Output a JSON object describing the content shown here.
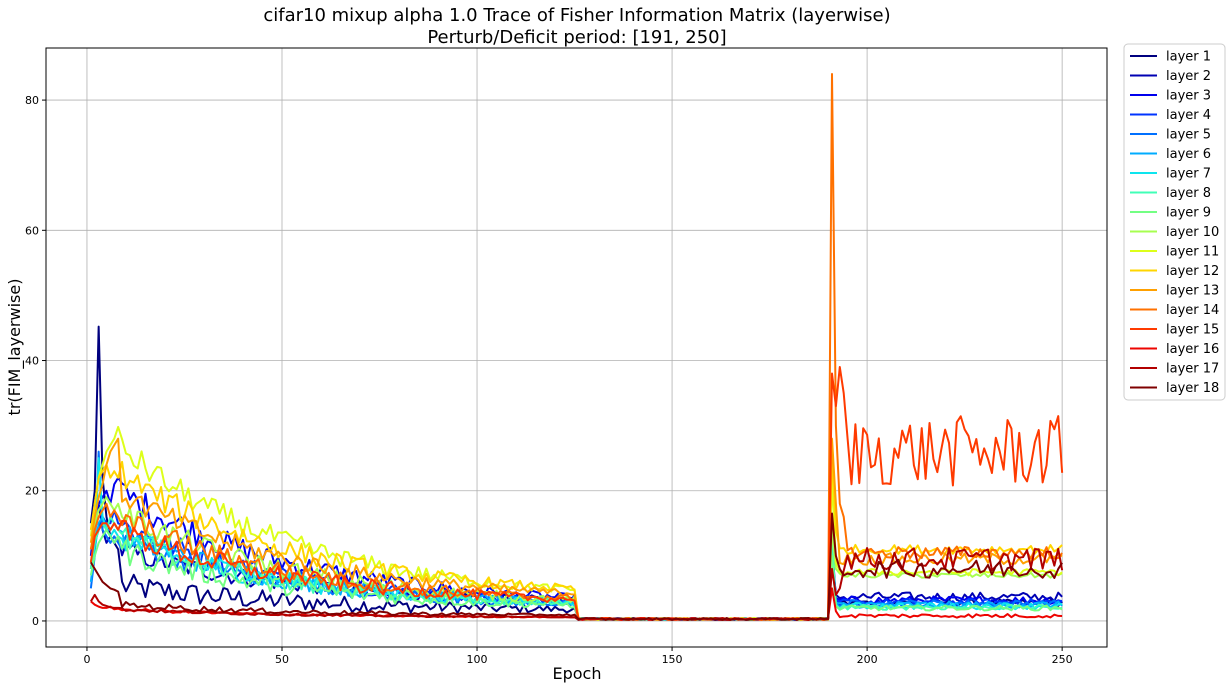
{
  "chart_data": {
    "type": "line",
    "title": "cifar10 mixup alpha 1.0 Trace of Fisher Information Matrix (layerwise)",
    "subtitle": "Perturb/Deficit period: [191, 250]",
    "xlabel": "Epoch",
    "ylabel": "tr(FIM_layerwise)",
    "xlim": [
      -10.5,
      261.5
    ],
    "ylim": [
      -4,
      88
    ],
    "xticks": [
      0,
      50,
      100,
      150,
      200,
      250
    ],
    "yticks": [
      0,
      20,
      40,
      60,
      80
    ],
    "grid": true,
    "legend_position": "outside-right-top",
    "series": [
      {
        "name": "layer 1",
        "color": "#00007f",
        "init": [
          [
            1,
            15
          ],
          [
            2,
            20
          ],
          [
            3,
            45.2
          ],
          [
            4,
            22
          ],
          [
            5,
            16
          ],
          [
            6,
            13
          ],
          [
            7,
            12
          ],
          [
            8,
            11
          ]
        ],
        "mid": 5.5,
        "k": 4,
        "decayEnd": 1.5,
        "post": [
          [
            191,
            11
          ],
          [
            192,
            3.2
          ]
        ],
        "plateau": 2.8,
        "noise": 0.5
      },
      {
        "name": "layer 2",
        "color": "#0000b3",
        "init": [
          [
            1,
            14
          ],
          [
            2,
            16
          ],
          [
            3,
            18
          ],
          [
            4,
            14
          ],
          [
            5,
            12
          ],
          [
            6,
            13
          ],
          [
            7,
            12
          ],
          [
            8,
            13
          ]
        ],
        "mid": 11,
        "k": 3.5,
        "decayEnd": 2.6,
        "post": [
          [
            191,
            10
          ],
          [
            192,
            4.0
          ]
        ],
        "plateau": 3.7,
        "noise": 0.7
      },
      {
        "name": "layer 3",
        "color": "#0000ed",
        "init": [
          [
            1,
            10
          ],
          [
            2,
            16
          ],
          [
            3,
            18
          ],
          [
            4,
            19
          ],
          [
            5,
            20
          ],
          [
            6,
            18
          ],
          [
            7,
            21
          ],
          [
            8,
            22
          ]
        ],
        "mid": 20,
        "k": 5,
        "decayEnd": 2.2,
        "post": [
          [
            191,
            12
          ],
          [
            192,
            3.5
          ]
        ],
        "plateau": 3.2,
        "noise": 0.6
      },
      {
        "name": "layer 4",
        "color": "#0034ff",
        "init": [
          [
            1,
            8
          ],
          [
            2,
            12
          ],
          [
            3,
            14
          ],
          [
            4,
            16
          ],
          [
            5,
            15
          ],
          [
            6,
            15
          ],
          [
            7,
            17
          ],
          [
            8,
            15
          ]
        ],
        "mid": 15,
        "k": 4,
        "decayEnd": 2.0,
        "post": [
          [
            191,
            10
          ],
          [
            192,
            3.2
          ]
        ],
        "plateau": 2.9,
        "noise": 0.5
      },
      {
        "name": "layer 5",
        "color": "#0070ff",
        "init": [
          [
            1,
            5
          ],
          [
            2,
            10
          ],
          [
            3,
            26
          ],
          [
            4,
            14
          ],
          [
            5,
            13
          ],
          [
            6,
            12
          ],
          [
            7,
            13
          ],
          [
            8,
            12
          ]
        ],
        "mid": 13,
        "k": 4,
        "decayEnd": 1.8,
        "post": [
          [
            191,
            11
          ],
          [
            192,
            3.0
          ]
        ],
        "plateau": 2.7,
        "noise": 0.5
      },
      {
        "name": "layer 6",
        "color": "#00acff",
        "init": [
          [
            1,
            6
          ],
          [
            2,
            11
          ],
          [
            3,
            15
          ],
          [
            4,
            16
          ],
          [
            5,
            14
          ],
          [
            6,
            14
          ],
          [
            7,
            15
          ],
          [
            8,
            14
          ]
        ],
        "mid": 13.5,
        "k": 4,
        "decayEnd": 1.9,
        "post": [
          [
            191,
            10
          ],
          [
            192,
            2.8
          ]
        ],
        "plateau": 2.5,
        "noise": 0.5
      },
      {
        "name": "layer 7",
        "color": "#0de5ee",
        "init": [
          [
            1,
            9
          ],
          [
            2,
            12
          ],
          [
            3,
            25
          ],
          [
            4,
            16
          ],
          [
            5,
            14
          ],
          [
            6,
            13
          ],
          [
            7,
            14
          ],
          [
            8,
            13
          ]
        ],
        "mid": 13,
        "k": 4,
        "decayEnd": 2.0,
        "post": [
          [
            191,
            12
          ],
          [
            192,
            2.6
          ]
        ],
        "plateau": 2.3,
        "noise": 0.5
      },
      {
        "name": "layer 8",
        "color": "#40ffb7",
        "init": [
          [
            1,
            8
          ],
          [
            2,
            12
          ],
          [
            3,
            14
          ],
          [
            4,
            15
          ],
          [
            5,
            14
          ],
          [
            6,
            16
          ],
          [
            7,
            15
          ],
          [
            8,
            14
          ]
        ],
        "mid": 13,
        "k": 4,
        "decayEnd": 2.0,
        "post": [
          [
            191,
            12
          ],
          [
            192,
            2.4
          ]
        ],
        "plateau": 2.1,
        "noise": 0.4
      },
      {
        "name": "layer 9",
        "color": "#73ff83",
        "init": [
          [
            1,
            7
          ],
          [
            2,
            10
          ],
          [
            3,
            12
          ],
          [
            4,
            13
          ],
          [
            5,
            14
          ],
          [
            6,
            13
          ],
          [
            7,
            12
          ],
          [
            8,
            13
          ]
        ],
        "mid": 11,
        "k": 4,
        "decayEnd": 1.8,
        "post": [
          [
            191,
            10
          ],
          [
            192,
            2.3
          ]
        ],
        "plateau": 2.0,
        "noise": 0.4
      },
      {
        "name": "layer 10",
        "color": "#a7ff50",
        "init": [
          [
            1,
            11
          ],
          [
            2,
            15
          ],
          [
            3,
            17
          ],
          [
            4,
            18
          ],
          [
            5,
            19
          ],
          [
            6,
            18
          ],
          [
            7,
            17
          ],
          [
            8,
            18
          ]
        ],
        "mid": 17,
        "k": 4,
        "decayEnd": 2.2,
        "post": [
          [
            191,
            14
          ],
          [
            192,
            8
          ]
        ],
        "plateau": 7.0,
        "noise": 0.4
      },
      {
        "name": "layer 11",
        "color": "#ddff1a",
        "init": [
          [
            1,
            13
          ],
          [
            2,
            18
          ],
          [
            3,
            22
          ],
          [
            4,
            24
          ],
          [
            5,
            26
          ],
          [
            6,
            27
          ],
          [
            7,
            28
          ],
          [
            8,
            29.8
          ]
        ],
        "mid": 27,
        "k": 4.5,
        "decayEnd": 3.0,
        "post": [
          [
            191,
            22
          ],
          [
            192,
            9
          ]
        ],
        "plateau": 7.5,
        "noise": 0.5
      },
      {
        "name": "layer 12",
        "color": "#ffd600",
        "init": [
          [
            1,
            14
          ],
          [
            2,
            18
          ],
          [
            3,
            22
          ],
          [
            4,
            23
          ],
          [
            5,
            24
          ],
          [
            6,
            22
          ],
          [
            7,
            23
          ],
          [
            8,
            22
          ]
        ],
        "mid": 23,
        "k": 4.5,
        "decayEnd": 3.5,
        "post": [
          [
            191,
            26
          ],
          [
            192,
            14
          ]
        ],
        "plateau": 11,
        "noise": 0.7
      },
      {
        "name": "layer 13",
        "color": "#ffa000",
        "init": [
          [
            1,
            12
          ],
          [
            2,
            16
          ],
          [
            3,
            19
          ],
          [
            4,
            21
          ],
          [
            5,
            24
          ],
          [
            6,
            26
          ],
          [
            7,
            27
          ],
          [
            8,
            28
          ]
        ],
        "mid": 20,
        "k": 4,
        "decayEnd": 3.0,
        "post": [
          [
            191,
            28
          ],
          [
            192,
            18
          ]
        ],
        "plateau": 9.5,
        "noise": 0.9
      },
      {
        "name": "layer 14",
        "color": "#ff7100",
        "init": [
          [
            1,
            11
          ],
          [
            2,
            14
          ],
          [
            3,
            16
          ],
          [
            4,
            17
          ],
          [
            5,
            18
          ],
          [
            6,
            16
          ],
          [
            7,
            17
          ],
          [
            8,
            16
          ]
        ],
        "mid": 16,
        "k": 4,
        "decayEnd": 2.5,
        "post": [
          [
            191,
            84
          ],
          [
            192,
            30
          ],
          [
            193,
            18
          ],
          [
            194,
            16
          ]
        ],
        "plateau": 10.5,
        "noise": 1.0
      },
      {
        "name": "layer 15",
        "color": "#ff3a00",
        "init": [
          [
            1,
            9
          ],
          [
            2,
            13
          ],
          [
            3,
            14
          ],
          [
            4,
            15
          ],
          [
            5,
            15
          ],
          [
            6,
            14
          ],
          [
            7,
            15
          ],
          [
            8,
            14
          ]
        ],
        "mid": 14,
        "k": 4,
        "decayEnd": 2.5,
        "post": [
          [
            191,
            38
          ],
          [
            192,
            33
          ],
          [
            193,
            39
          ],
          [
            194,
            35
          ],
          [
            195,
            28
          ],
          [
            196,
            21
          ]
        ],
        "plateau": 26,
        "noise": 5.5
      },
      {
        "name": "layer 16",
        "color": "#ed0400",
        "init": [
          [
            1,
            3
          ],
          [
            2,
            2.5
          ],
          [
            3,
            2.2
          ],
          [
            4,
            2
          ],
          [
            5,
            2
          ],
          [
            6,
            2.2
          ],
          [
            7,
            1.8
          ],
          [
            8,
            1.9
          ]
        ],
        "mid": 1.8,
        "k": 0.5,
        "decayEnd": 0.5,
        "post": [
          [
            191,
            5
          ],
          [
            192,
            1.5
          ]
        ],
        "plateau": 0.8,
        "noise": 0.3
      },
      {
        "name": "layer 17",
        "color": "#b20000",
        "init": [
          [
            1,
            3
          ],
          [
            2,
            4
          ],
          [
            3,
            3
          ],
          [
            4,
            2.5
          ],
          [
            5,
            2.3
          ],
          [
            6,
            2.1
          ],
          [
            7,
            2
          ],
          [
            8,
            2
          ]
        ],
        "mid": 1.8,
        "k": 0.5,
        "decayEnd": 0.5,
        "post": [
          [
            191,
            8
          ],
          [
            192,
            4
          ],
          [
            193,
            5
          ]
        ],
        "plateau": 9.5,
        "noise": 1.8
      },
      {
        "name": "layer 18",
        "color": "#7f0000",
        "init": [
          [
            1,
            9
          ],
          [
            2,
            8
          ],
          [
            3,
            7
          ],
          [
            4,
            6
          ],
          [
            5,
            5.5
          ],
          [
            6,
            5
          ],
          [
            7,
            4.8
          ],
          [
            8,
            4.5
          ]
        ],
        "mid": 2.5,
        "k": 1,
        "decayEnd": 0.8,
        "post": [
          [
            191,
            16.5
          ],
          [
            192,
            10
          ],
          [
            193,
            8
          ],
          [
            194,
            7
          ]
        ],
        "plateau": 8,
        "noise": 1.4
      }
    ]
  }
}
